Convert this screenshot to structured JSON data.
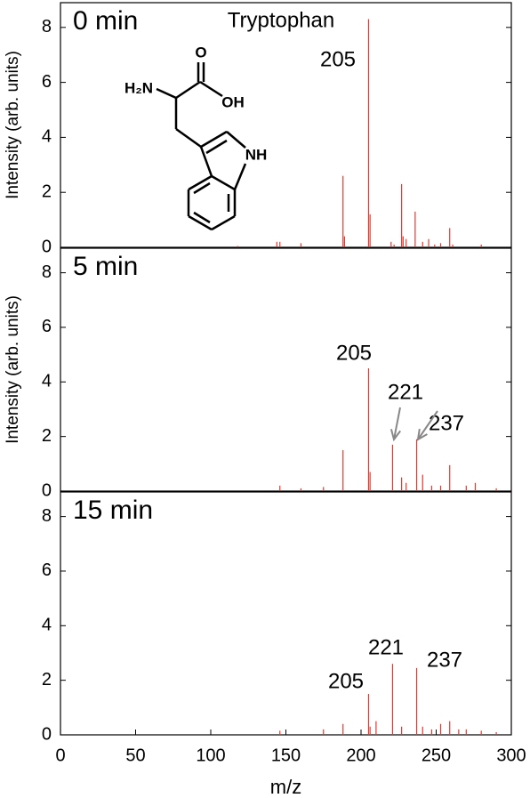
{
  "chart_data": [
    {
      "type": "bar",
      "label": "0 min",
      "annotations": [
        "Tryptophan",
        "205"
      ],
      "structure_labels": [
        "H₂N",
        "O",
        "OH",
        "NH"
      ],
      "ylabel": "Intensity (arb. units)",
      "color": "#e03a32",
      "x": [
        118,
        144,
        146,
        160,
        188,
        189,
        205,
        206,
        220,
        222,
        227,
        228,
        230,
        236,
        241,
        245,
        249,
        253,
        259,
        261,
        280
      ],
      "values": [
        0.05,
        0.2,
        0.2,
        0.15,
        2.6,
        0.4,
        8.3,
        1.2,
        0.2,
        0.1,
        2.3,
        0.4,
        0.3,
        1.3,
        0.2,
        0.3,
        0.1,
        0.15,
        0.7,
        0.1,
        0.1
      ],
      "xlim": [
        0,
        300
      ],
      "ylim": [
        0,
        8.9
      ],
      "yticks": [
        0,
        2,
        4,
        6,
        8
      ]
    },
    {
      "type": "bar",
      "label": "5 min",
      "annotations": [
        "205",
        "221",
        "237"
      ],
      "ylabel": "Intensity (arb. units)",
      "color": "#e03a32",
      "x": [
        146,
        160,
        175,
        188,
        205,
        206,
        221,
        227,
        230,
        237,
        241,
        247,
        253,
        259,
        270,
        276,
        290
      ],
      "values": [
        0.2,
        0.1,
        0.15,
        1.5,
        4.5,
        0.7,
        1.7,
        0.5,
        0.3,
        1.9,
        0.6,
        0.2,
        0.2,
        0.95,
        0.2,
        0.3,
        0.1
      ],
      "xlim": [
        0,
        300
      ],
      "ylim": [
        0,
        8.9
      ],
      "yticks": [
        0,
        2,
        4,
        6,
        8
      ]
    },
    {
      "type": "bar",
      "label": "15 min",
      "annotations": [
        "205",
        "221",
        "237"
      ],
      "xlabel": "m/z",
      "color": "#e03a32",
      "x": [
        146,
        175,
        188,
        205,
        206,
        210,
        221,
        227,
        237,
        241,
        247,
        253,
        259,
        265,
        270,
        280,
        290
      ],
      "values": [
        0.15,
        0.2,
        0.4,
        1.5,
        0.3,
        0.5,
        2.6,
        0.3,
        2.45,
        0.3,
        0.2,
        0.4,
        0.5,
        0.2,
        0.2,
        0.15,
        0.1
      ],
      "xlim": [
        0,
        300
      ],
      "ylim": [
        0,
        8.9
      ],
      "yticks": [
        0,
        2,
        4,
        6,
        8
      ],
      "xticks": [
        0,
        50,
        100,
        150,
        200,
        250,
        300
      ]
    }
  ]
}
